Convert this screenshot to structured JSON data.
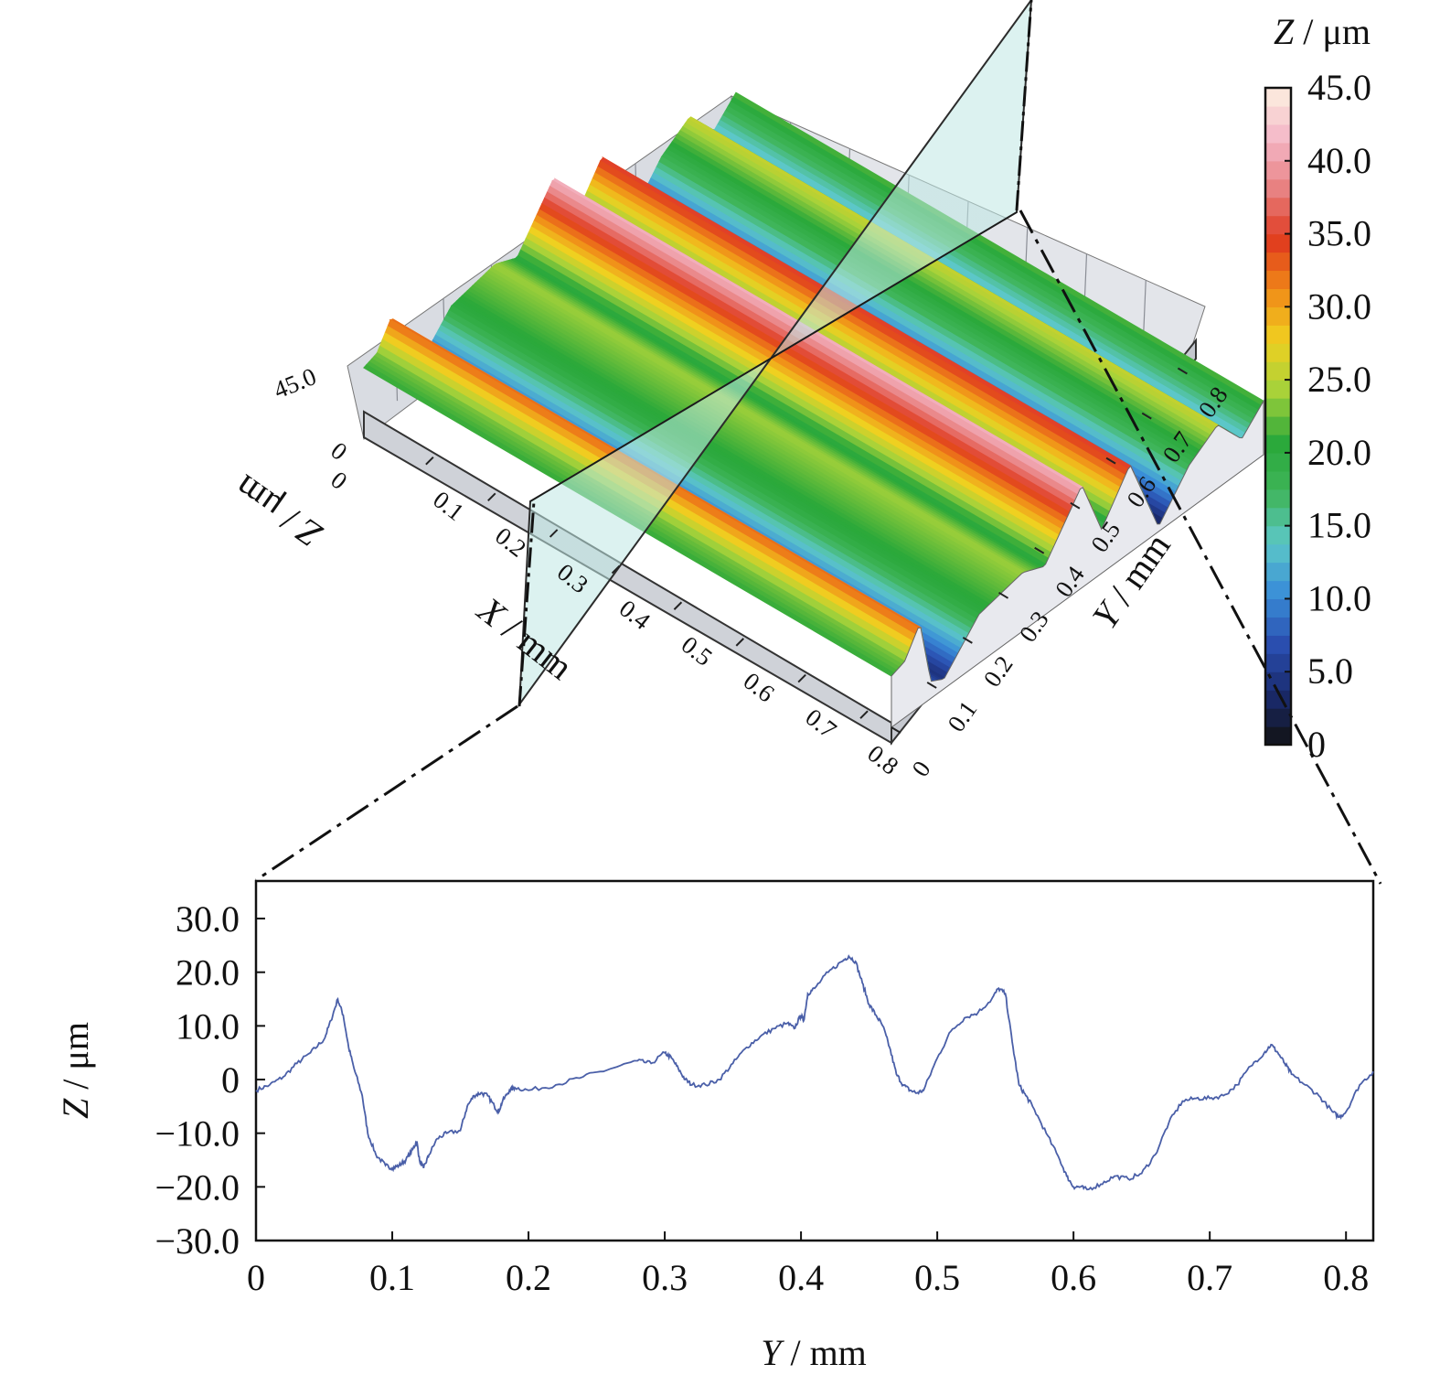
{
  "chart_data": [
    {
      "type": "surface3d",
      "xlabel": {
        "sym": "X",
        "unit": "mm"
      },
      "ylabel": {
        "sym": "Y",
        "unit": "mm"
      },
      "zlabel": {
        "sym": "Z",
        "unit": "μm"
      },
      "x_ticks": [
        "0.1",
        "0.2",
        "0.3",
        "0.4",
        "0.5",
        "0.6",
        "0.7",
        "0.8"
      ],
      "y_ticks": [
        "0",
        "0.1",
        "0.2",
        "0.3",
        "0.4",
        "0.5",
        "0.6",
        "0.7",
        "0.8"
      ],
      "x_origin_label": "0",
      "z_ticks": [
        "0",
        "45.0"
      ],
      "xlim": [
        0,
        0.85
      ],
      "ylim": [
        0,
        0.85
      ],
      "zlim": [
        0,
        45
      ],
      "stripes_along": "x",
      "height_profile_y": [
        0.0,
        0.03,
        0.065,
        0.09,
        0.12,
        0.2,
        0.3,
        0.35,
        0.435,
        0.48,
        0.545,
        0.61,
        0.68,
        0.745,
        0.8,
        0.85
      ],
      "height_profile_z": [
        21,
        23,
        34,
        7,
        4,
        20,
        24,
        20,
        42,
        18,
        36,
        2,
        18,
        26,
        13,
        22
      ],
      "section_plane": "vertical cut parallel to Y axis",
      "colorbar": {
        "title_sym": "Z",
        "title_unit": "μm",
        "ticks": [
          "45.0",
          "40.0",
          "35.0",
          "30.0",
          "25.0",
          "20.0",
          "15.0",
          "10.0",
          "5.0",
          "0"
        ],
        "range": [
          0,
          45
        ],
        "colors": [
          "#111111",
          "#1a2a6e",
          "#2a4fb0",
          "#3a8ed8",
          "#5cc8c8",
          "#3fb55a",
          "#2aa83a",
          "#a6d23a",
          "#f0d020",
          "#f08a18",
          "#e03a1e",
          "#e88080",
          "#f4b8c8",
          "#fdf0e0"
        ]
      }
    },
    {
      "type": "line",
      "xlabel": {
        "sym": "Y",
        "unit": "mm"
      },
      "ylabel": {
        "sym": "Z",
        "unit": "μm"
      },
      "xlim": [
        0,
        0.82
      ],
      "ylim": [
        -30,
        37
      ],
      "x_ticks": [
        "0",
        "0.1",
        "0.2",
        "0.3",
        "0.4",
        "0.5",
        "0.6",
        "0.7",
        "0.8"
      ],
      "y_ticks": [
        "30.0",
        "20.0",
        "10.0",
        "0",
        "−10.0",
        "−20.0",
        "−30.0"
      ],
      "line_color": "#4a5fa8",
      "series": [
        {
          "x": [
            0.0,
            0.01,
            0.02,
            0.03,
            0.04,
            0.05,
            0.055,
            0.06,
            0.064,
            0.068,
            0.072,
            0.078,
            0.082,
            0.088,
            0.095,
            0.1,
            0.105,
            0.11,
            0.115,
            0.118,
            0.12,
            0.123,
            0.127,
            0.133,
            0.14,
            0.15,
            0.155,
            0.16,
            0.165,
            0.17,
            0.175,
            0.178,
            0.181,
            0.186,
            0.19,
            0.2,
            0.22,
            0.24,
            0.26,
            0.28,
            0.29,
            0.3,
            0.305,
            0.31,
            0.315,
            0.32,
            0.33,
            0.34,
            0.35,
            0.36,
            0.37,
            0.38,
            0.39,
            0.395,
            0.4,
            0.402,
            0.405,
            0.41,
            0.42,
            0.43,
            0.435,
            0.44,
            0.445,
            0.45,
            0.455,
            0.46,
            0.465,
            0.47,
            0.475,
            0.48,
            0.485,
            0.49,
            0.5,
            0.51,
            0.52,
            0.53,
            0.54,
            0.545,
            0.55,
            0.555,
            0.56,
            0.565,
            0.57,
            0.58,
            0.59,
            0.595,
            0.6,
            0.605,
            0.61,
            0.62,
            0.63,
            0.64,
            0.65,
            0.66,
            0.67,
            0.68,
            0.69,
            0.7,
            0.71,
            0.72,
            0.73,
            0.74,
            0.745,
            0.75,
            0.755,
            0.76,
            0.77,
            0.78,
            0.79,
            0.795,
            0.8,
            0.81,
            0.82
          ],
          "y": [
            -2,
            -1,
            0.5,
            3,
            5,
            7.5,
            11,
            15,
            12,
            6,
            2,
            -3,
            -10,
            -14,
            -16,
            -16.5,
            -16,
            -15,
            -13,
            -11.5,
            -15,
            -16.5,
            -14,
            -11,
            -10,
            -9.5,
            -5,
            -3,
            -2.5,
            -3,
            -5,
            -6,
            -4,
            -2,
            -1.5,
            -2,
            -1,
            0.5,
            2,
            3.5,
            3,
            5,
            4,
            2,
            0,
            -1,
            -1,
            0,
            3,
            6,
            8,
            9.5,
            10.5,
            9.5,
            12,
            11,
            16,
            17,
            20,
            22,
            23,
            22,
            18,
            14,
            12,
            10,
            6,
            1,
            -1,
            -2,
            -2.5,
            -2,
            4,
            9,
            11.5,
            12.5,
            15,
            17,
            16,
            7,
            -1,
            -3,
            -5,
            -10,
            -15,
            -18,
            -20,
            -20,
            -20.5,
            -19.5,
            -18,
            -18.5,
            -17.5,
            -14,
            -8,
            -4,
            -3.5,
            -3.5,
            -3,
            -1,
            2.5,
            5,
            6.5,
            5,
            3,
            1,
            -1,
            -3,
            -6,
            -7,
            -6,
            -1,
            1.5
          ]
        }
      ]
    }
  ]
}
